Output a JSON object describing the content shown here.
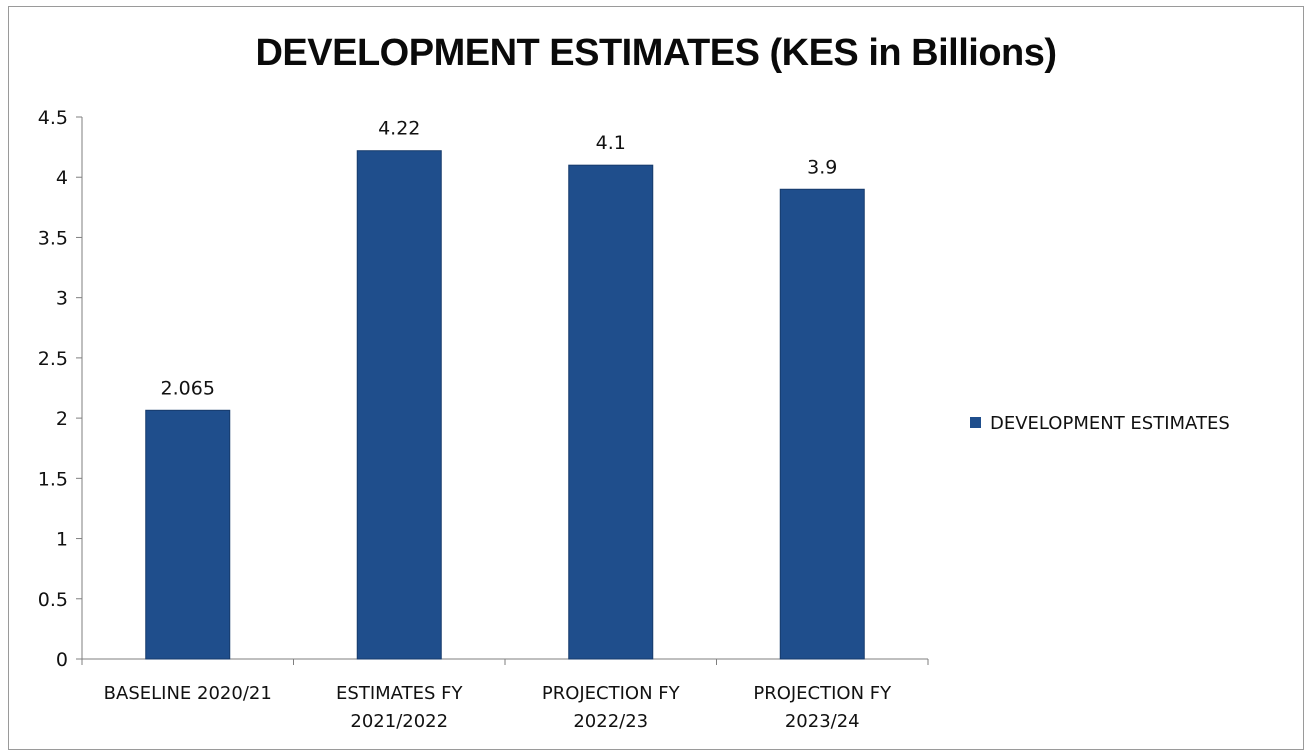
{
  "chart_data": {
    "type": "bar",
    "title": "DEVELOPMENT ESTIMATES (KES in Billions)",
    "categories": [
      [
        "BASELINE 2020/21"
      ],
      [
        "ESTIMATES FY",
        "2021/2022"
      ],
      [
        "PROJECTION FY",
        "2022/23"
      ],
      [
        "PROJECTION FY",
        "2023/24"
      ]
    ],
    "series": [
      {
        "name": "DEVELOPMENT ESTIMATES",
        "values": [
          2.065,
          4.22,
          4.1,
          3.9
        ],
        "labels": [
          "2.065",
          "4.22",
          "4.1",
          "3.9"
        ],
        "color": "#1f4e8c"
      }
    ],
    "yticks": [
      "0",
      "0.5",
      "1",
      "1.5",
      "2",
      "2.5",
      "3",
      "3.5",
      "4",
      "4.5"
    ],
    "ylim": [
      0,
      4.5
    ],
    "grid": false,
    "legend": "right"
  }
}
